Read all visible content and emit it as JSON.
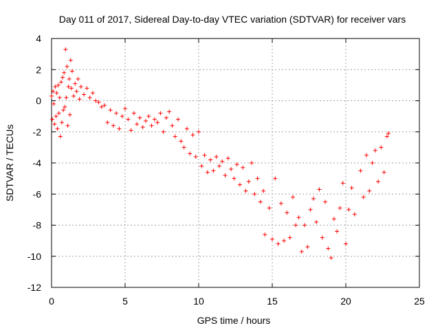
{
  "chart_data": {
    "type": "scatter",
    "title": "Day 011 of 2017, Sidereal Day-to-day VTEC variation (SDTVAR) for receiver vars",
    "xlabel": "GPS time / hours",
    "ylabel": "SDTVAR / TECUs",
    "xlim": [
      0,
      25
    ],
    "ylim": [
      -12,
      4
    ],
    "xticks": [
      0,
      5,
      10,
      15,
      20,
      25
    ],
    "yticks": [
      -12,
      -10,
      -8,
      -6,
      -4,
      -2,
      0,
      2,
      4
    ],
    "xtick_labels": [
      "0",
      "5",
      "10",
      "15",
      "20",
      "25"
    ],
    "ytick_labels": [
      "-12",
      "-10",
      "-8",
      "-6",
      "-4",
      "-2",
      "0",
      "2",
      "4"
    ],
    "grid": true,
    "marker": "+",
    "color": "#ff0000",
    "series": [
      {
        "name": "SDTVAR",
        "points": [
          [
            0.0,
            0.3
          ],
          [
            0.05,
            -1.2
          ],
          [
            0.1,
            0.6
          ],
          [
            0.15,
            -0.2
          ],
          [
            0.2,
            -1.5
          ],
          [
            0.25,
            0.9
          ],
          [
            0.3,
            -1.0
          ],
          [
            0.35,
            0.5
          ],
          [
            0.4,
            -1.8
          ],
          [
            0.45,
            1.0
          ],
          [
            0.5,
            -0.8
          ],
          [
            0.55,
            0.2
          ],
          [
            0.6,
            -2.3
          ],
          [
            0.65,
            1.2
          ],
          [
            0.7,
            -1.4
          ],
          [
            0.75,
            1.5
          ],
          [
            0.8,
            -0.6
          ],
          [
            0.85,
            1.8
          ],
          [
            0.9,
            -0.4
          ],
          [
            0.95,
            3.3
          ],
          [
            1.0,
            0.2
          ],
          [
            1.05,
            2.2
          ],
          [
            1.1,
            -1.6
          ],
          [
            1.15,
            0.9
          ],
          [
            1.2,
            1.4
          ],
          [
            1.25,
            -0.9
          ],
          [
            1.3,
            2.6
          ],
          [
            1.35,
            0.8
          ],
          [
            1.4,
            1.9
          ],
          [
            1.5,
            0.3
          ],
          [
            1.6,
            1.1
          ],
          [
            1.7,
            0.6
          ],
          [
            1.8,
            1.4
          ],
          [
            1.9,
            0.1
          ],
          [
            2.0,
            0.9
          ],
          [
            2.2,
            0.4
          ],
          [
            2.4,
            0.8
          ],
          [
            2.6,
            0.2
          ],
          [
            2.8,
            0.5
          ],
          [
            3.0,
            0.0
          ],
          [
            3.2,
            -0.1
          ],
          [
            3.4,
            -0.4
          ],
          [
            3.6,
            -0.3
          ],
          [
            3.8,
            -1.4
          ],
          [
            4.0,
            -0.6
          ],
          [
            4.2,
            -1.6
          ],
          [
            4.4,
            -0.8
          ],
          [
            4.6,
            -1.8
          ],
          [
            4.8,
            -1.0
          ],
          [
            5.0,
            -0.5
          ],
          [
            5.2,
            -1.2
          ],
          [
            5.4,
            -1.9
          ],
          [
            5.6,
            -0.8
          ],
          [
            5.8,
            -1.5
          ],
          [
            6.0,
            -1.1
          ],
          [
            6.2,
            -1.7
          ],
          [
            6.4,
            -1.3
          ],
          [
            6.6,
            -1.0
          ],
          [
            6.8,
            -1.6
          ],
          [
            7.0,
            -1.2
          ],
          [
            7.2,
            -1.4
          ],
          [
            7.4,
            -0.8
          ],
          [
            7.6,
            -2.0
          ],
          [
            7.8,
            -1.1
          ],
          [
            8.0,
            -0.7
          ],
          [
            8.2,
            -1.6
          ],
          [
            8.4,
            -2.3
          ],
          [
            8.6,
            -1.2
          ],
          [
            8.8,
            -2.6
          ],
          [
            9.0,
            -3.0
          ],
          [
            9.2,
            -1.8
          ],
          [
            9.4,
            -3.4
          ],
          [
            9.6,
            -2.2
          ],
          [
            9.8,
            -3.6
          ],
          [
            10.0,
            -2.0
          ],
          [
            10.2,
            -4.2
          ],
          [
            10.4,
            -3.5
          ],
          [
            10.6,
            -4.6
          ],
          [
            10.8,
            -3.8
          ],
          [
            11.0,
            -4.5
          ],
          [
            11.2,
            -3.6
          ],
          [
            11.4,
            -4.2
          ],
          [
            11.6,
            -3.9
          ],
          [
            11.8,
            -4.8
          ],
          [
            12.0,
            -3.7
          ],
          [
            12.2,
            -4.4
          ],
          [
            12.4,
            -5.0
          ],
          [
            12.6,
            -4.1
          ],
          [
            12.8,
            -5.4
          ],
          [
            13.0,
            -4.3
          ],
          [
            13.2,
            -5.8
          ],
          [
            13.4,
            -5.2
          ],
          [
            13.6,
            -4.0
          ],
          [
            13.8,
            -6.0
          ],
          [
            14.0,
            -5.0
          ],
          [
            14.2,
            -6.5
          ],
          [
            14.4,
            -5.8
          ],
          [
            14.5,
            -8.6
          ],
          [
            14.8,
            -6.9
          ],
          [
            15.0,
            -8.9
          ],
          [
            15.2,
            -5.0
          ],
          [
            15.4,
            -9.2
          ],
          [
            15.6,
            -6.6
          ],
          [
            15.8,
            -9.0
          ],
          [
            16.0,
            -7.2
          ],
          [
            16.2,
            -8.8
          ],
          [
            16.4,
            -6.2
          ],
          [
            16.6,
            -8.0
          ],
          [
            16.8,
            -7.5
          ],
          [
            17.0,
            -9.7
          ],
          [
            17.2,
            -8.0
          ],
          [
            17.4,
            -9.4
          ],
          [
            17.6,
            -7.0
          ],
          [
            17.8,
            -6.3
          ],
          [
            18.0,
            -7.8
          ],
          [
            18.2,
            -5.7
          ],
          [
            18.4,
            -8.8
          ],
          [
            18.6,
            -6.5
          ],
          [
            18.8,
            -9.5
          ],
          [
            19.0,
            -10.1
          ],
          [
            19.2,
            -7.6
          ],
          [
            19.4,
            -8.4
          ],
          [
            19.6,
            -6.9
          ],
          [
            19.8,
            -5.3
          ],
          [
            20.0,
            -9.2
          ],
          [
            20.2,
            -7.0
          ],
          [
            20.4,
            -5.6
          ],
          [
            20.6,
            -7.3
          ],
          [
            21.0,
            -4.5
          ],
          [
            21.2,
            -6.2
          ],
          [
            21.4,
            -3.5
          ],
          [
            21.6,
            -5.8
          ],
          [
            21.8,
            -4.0
          ],
          [
            22.0,
            -3.2
          ],
          [
            22.2,
            -5.2
          ],
          [
            22.4,
            -3.0
          ],
          [
            22.6,
            -4.6
          ],
          [
            22.8,
            -2.3
          ],
          [
            22.9,
            -2.1
          ]
        ]
      }
    ]
  }
}
